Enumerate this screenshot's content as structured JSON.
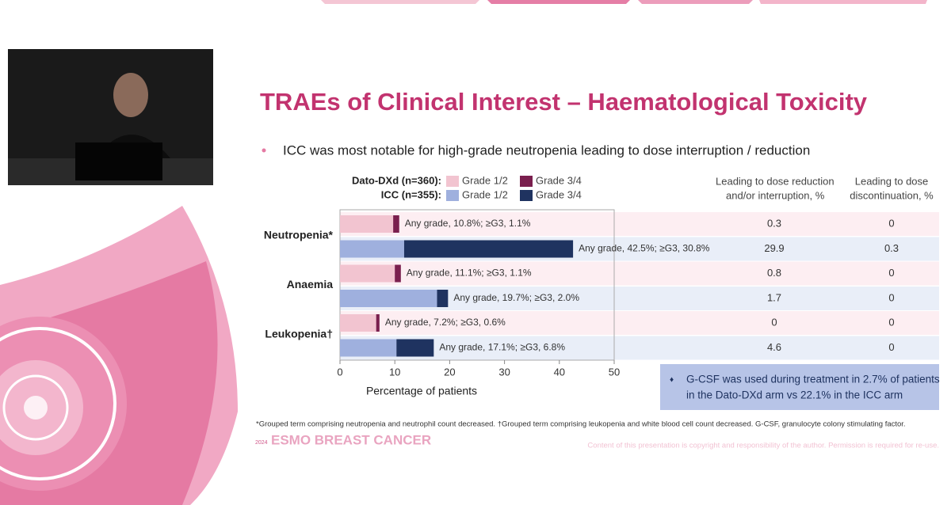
{
  "slide": {
    "title": "TRAEs of Clinical Interest – Haematological Toxicity",
    "bullet": "ICC was most notable for high-grade neutropenia leading to dose interruption / reduction",
    "footnote": "*Grouped term comprising neutropenia and neutrophil count decreased. †Grouped term comprising leukopenia and white blood cell count decreased. G-CSF, granulocyte colony stimulating factor.",
    "logo_year": "2024",
    "logo": "ESMO BREAST CANCER",
    "copyright": "Content of this presentation is copyright and responsibility of the author. Permission is required for re-use.",
    "callout": [
      "G-CSF was used during treatment in 2.7% of patients",
      "in the Dato-DXd arm vs 22.1% in the ICC arm"
    ],
    "table_headers": [
      [
        "Leading to dose reduction",
        "and/or interruption, %"
      ],
      [
        "Leading to dose",
        "discontinuation, %"
      ]
    ]
  },
  "chart_data": {
    "type": "stacked_barh",
    "categories": [
      "Neutropenia*",
      "Anaemia",
      "Leukopenia†"
    ],
    "arms": [
      {
        "name": "Dato-DXd (n=360):",
        "row_color": "#fdeef2",
        "series": [
          {
            "name": "Grade 1/2",
            "color": "#f2c4d0",
            "values": [
              9.7,
              10.0,
              6.6
            ]
          },
          {
            "name": "Grade 3/4",
            "color": "#7a1f4e",
            "values": [
              1.1,
              1.1,
              0.6
            ]
          }
        ],
        "annotations": [
          "Any grade, 10.8%; ≥G3, 1.1%",
          "Any grade, 11.1%; ≥G3, 1.1%",
          "Any grade, 7.2%; ≥G3, 0.6%"
        ],
        "dose_reduction": [
          0.3,
          0.8,
          0
        ],
        "discontinuation": [
          0,
          0,
          0
        ]
      },
      {
        "name": "ICC (n=355):",
        "row_color": "#e9eef8",
        "series": [
          {
            "name": "Grade 1/2",
            "color": "#9fb0de",
            "values": [
              11.7,
              17.7,
              10.3
            ]
          },
          {
            "name": "Grade 3/4",
            "color": "#1f3360",
            "values": [
              30.8,
              2.0,
              6.8
            ]
          }
        ],
        "annotations": [
          "Any grade, 42.5%; ≥G3, 30.8%",
          "Any grade, 19.7%; ≥G3, 2.0%",
          "Any grade, 17.1%; ≥G3, 6.8%"
        ],
        "dose_reduction": [
          29.9,
          1.7,
          4.6
        ],
        "discontinuation": [
          0.3,
          0,
          0
        ]
      }
    ],
    "xlabel": "Percentage of patients",
    "xlim": [
      0,
      50
    ],
    "xticks": [
      0,
      10,
      20,
      30,
      40,
      50
    ]
  }
}
